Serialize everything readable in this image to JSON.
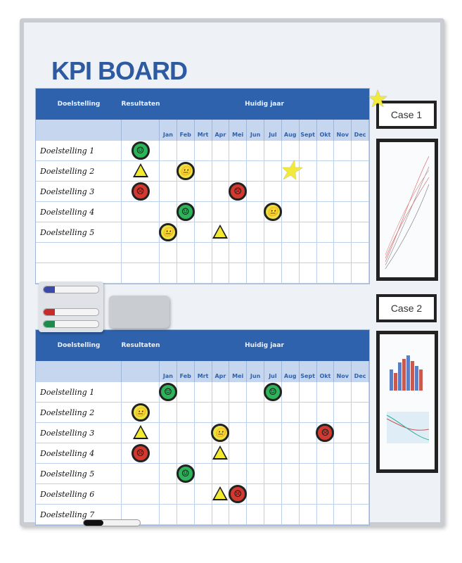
{
  "title": "KPI BOARD",
  "months": [
    "Jan",
    "Feb",
    "Mrt",
    "Apr",
    "Mei",
    "Jun",
    "Jul",
    "Aug",
    "Sept",
    "Okt",
    "Nov",
    "Dec"
  ],
  "colors": {
    "brand": "#2f62ad",
    "green": "#2db35a",
    "yellow": "#e9e340",
    "red": "#d23a30"
  },
  "side": {
    "case1": "Case 1",
    "case2": "Case 2"
  },
  "tables": [
    {
      "header": {
        "goal": "Doelstelling",
        "results": "Resultaten",
        "year": "Huidig jaar"
      },
      "rows": [
        "Doelstelling 1",
        "Doelstelling 2",
        "Doelstelling 3",
        "Doelstelling 4",
        "Doelstelling 5",
        "",
        ""
      ],
      "items": [
        {
          "row": 0,
          "col": -1,
          "type": "star"
        },
        {
          "row": 0,
          "col": 0,
          "type": "green"
        },
        {
          "row": 1,
          "col": 0,
          "type": "warning"
        },
        {
          "row": 1,
          "col": 2,
          "type": "yellow"
        },
        {
          "row": 1,
          "col": 8,
          "type": "star"
        },
        {
          "row": 2,
          "col": 0,
          "type": "red"
        },
        {
          "row": 2,
          "col": 5,
          "type": "red"
        },
        {
          "row": 3,
          "col": -1,
          "type": "star"
        },
        {
          "row": 3,
          "col": 2,
          "type": "green"
        },
        {
          "row": 3,
          "col": 7,
          "type": "yellow"
        },
        {
          "row": 4,
          "col": 1,
          "type": "yellow"
        },
        {
          "row": 4,
          "col": 4,
          "type": "warning"
        }
      ]
    },
    {
      "header": {
        "goal": "Doelstelling",
        "results": "Resultaten",
        "year": "Huidig jaar"
      },
      "rows": [
        "Doelstelling 1",
        "Doelstelling 2",
        "Doelstelling 3",
        "Doelstelling 4",
        "Doelstelling 5",
        "Doelstelling 6",
        "Doelstelling 7"
      ],
      "items": [
        {
          "row": 0,
          "col": 1,
          "type": "green"
        },
        {
          "row": 0,
          "col": 7,
          "type": "green"
        },
        {
          "row": 1,
          "col": -1,
          "type": "star"
        },
        {
          "row": 1,
          "col": 0,
          "type": "yellow"
        },
        {
          "row": 2,
          "col": 0,
          "type": "warning"
        },
        {
          "row": 2,
          "col": 4,
          "type": "yellow"
        },
        {
          "row": 2,
          "col": 10,
          "type": "red"
        },
        {
          "row": 3,
          "col": 0,
          "type": "red"
        },
        {
          "row": 3,
          "col": 4,
          "type": "warning"
        },
        {
          "row": 4,
          "col": 2,
          "type": "green"
        },
        {
          "row": 5,
          "col": 4,
          "type": "warning"
        },
        {
          "row": 5,
          "col": 5,
          "type": "red"
        }
      ]
    }
  ]
}
